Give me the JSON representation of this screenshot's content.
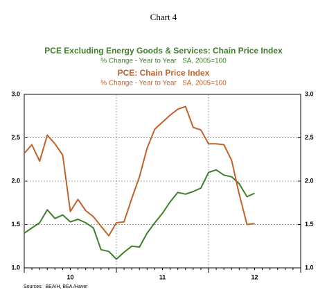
{
  "chart_data": {
    "type": "line",
    "title": "Chart 4",
    "source": "Sources:  BEA/H, BEA /Haver",
    "x": [
      2010,
      2010.083,
      2010.167,
      2010.25,
      2010.333,
      2010.417,
      2010.5,
      2010.583,
      2010.667,
      2010.75,
      2010.833,
      2010.917,
      2011,
      2011.083,
      2011.167,
      2011.25,
      2011.333,
      2011.417,
      2011.5,
      2011.583,
      2011.667,
      2011.75,
      2011.833,
      2011.917,
      2012,
      2012.083,
      2012.167,
      2012.25,
      2012.333,
      2012.417,
      2012.5
    ],
    "xlim": [
      2010,
      2013
    ],
    "xticks": [
      {
        "value": 2010.5,
        "label": "10"
      },
      {
        "value": 2011.5,
        "label": "11"
      },
      {
        "value": 2012.5,
        "label": "12"
      }
    ],
    "ylim": [
      1.0,
      3.0
    ],
    "yticks": [
      {
        "value": 1.0,
        "label": "1.0"
      },
      {
        "value": 1.5,
        "label": "1.5"
      },
      {
        "value": 2.0,
        "label": "2.0"
      },
      {
        "value": 2.5,
        "label": "2.5"
      },
      {
        "value": 3.0,
        "label": "3.0"
      }
    ],
    "y2lim": [
      1.0,
      3.0
    ],
    "y2ticks": [
      {
        "value": 1.0,
        "label": "1.0"
      },
      {
        "value": 1.5,
        "label": "1.5"
      },
      {
        "value": 2.0,
        "label": "2.0"
      },
      {
        "value": 2.5,
        "label": "2.5"
      },
      {
        "value": 3.0,
        "label": "3.0"
      }
    ],
    "grid": true,
    "series": [
      {
        "name": "PCE Excluding Energy Goods & Services: Chain Price Index",
        "subtitle": "% Change - Year to Year   SA, 2005=100",
        "color": "#3f7f2a",
        "values": [
          1.4,
          1.46,
          1.52,
          1.67,
          1.57,
          1.61,
          1.53,
          1.56,
          1.52,
          1.46,
          1.21,
          1.19,
          1.1,
          1.18,
          1.25,
          1.24,
          1.4,
          1.52,
          1.63,
          1.76,
          1.87,
          1.85,
          1.88,
          1.92,
          2.1,
          2.13,
          2.07,
          2.05,
          1.97,
          1.82,
          1.86
        ]
      },
      {
        "name": "PCE: Chain Price Index",
        "subtitle": "% Change - Year to Year   SA, 2005=100",
        "color": "#c0622a",
        "values": [
          2.32,
          2.42,
          2.23,
          2.53,
          2.43,
          2.3,
          1.65,
          1.79,
          1.66,
          1.59,
          1.48,
          1.37,
          1.52,
          1.53,
          1.8,
          2.05,
          2.38,
          2.6,
          2.68,
          2.76,
          2.83,
          2.86,
          2.62,
          2.59,
          2.43,
          2.43,
          2.42,
          2.24,
          1.85,
          1.5,
          1.51
        ]
      }
    ]
  }
}
